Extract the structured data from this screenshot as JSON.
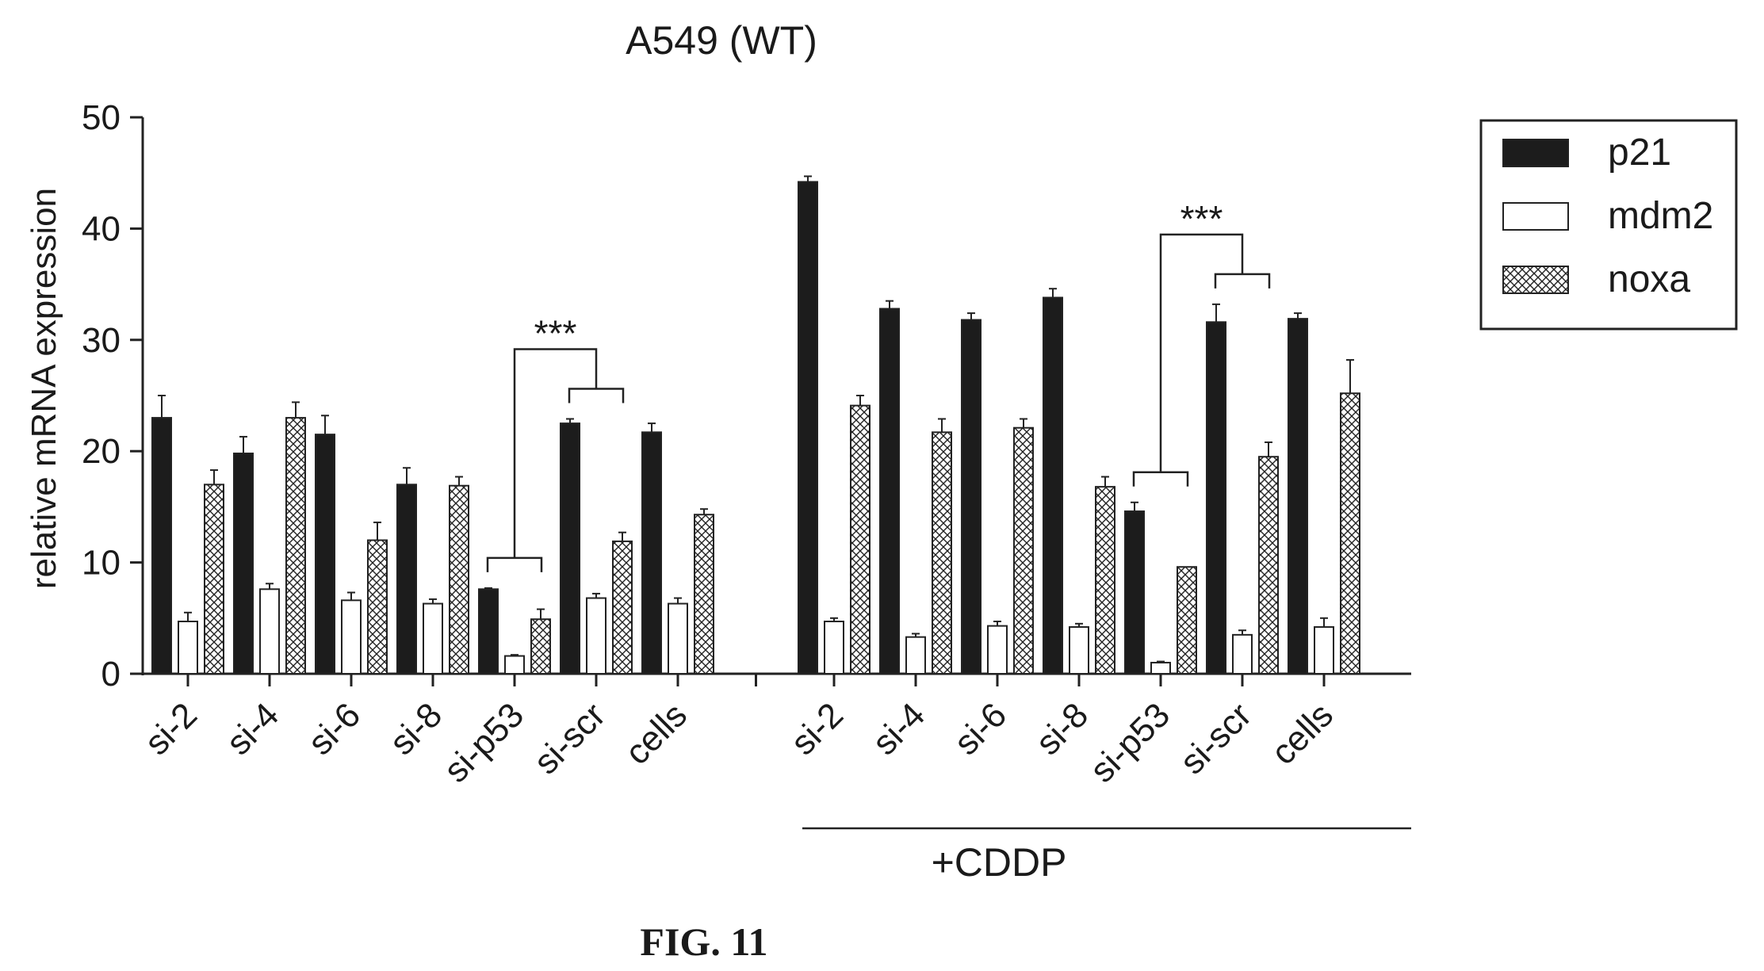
{
  "chart_data": {
    "type": "bar",
    "title": "A549 (WT)",
    "ylabel": "relative mRNA expression",
    "xlabel": "",
    "ylim": [
      0,
      50
    ],
    "yticks": [
      0,
      10,
      20,
      30,
      40,
      50
    ],
    "grid": false,
    "legend_position": "top-right",
    "categories": [
      "si-2",
      "si-4",
      "si-6",
      "si-8",
      "si-p53",
      "si-scr",
      "cells",
      "si-2",
      "si-4",
      "si-6",
      "si-8",
      "si-p53",
      "si-scr",
      "cells"
    ],
    "group_label": "+CDDP",
    "figure_label": "FIG. 11",
    "series": [
      {
        "name": "p21",
        "pattern": "solid",
        "values": [
          23.0,
          19.8,
          21.5,
          17.0,
          7.6,
          22.5,
          21.7,
          44.2,
          32.8,
          31.8,
          33.8,
          14.6,
          31.6,
          31.9
        ],
        "errors": [
          2.0,
          1.5,
          1.7,
          1.5,
          0.1,
          0.4,
          0.8,
          0.5,
          0.7,
          0.6,
          0.8,
          0.8,
          1.6,
          0.5
        ]
      },
      {
        "name": "mdm2",
        "pattern": "open",
        "values": [
          4.7,
          7.6,
          6.6,
          6.3,
          1.6,
          6.8,
          6.3,
          4.7,
          3.3,
          4.3,
          4.2,
          1.0,
          3.5,
          4.2
        ],
        "errors": [
          0.8,
          0.5,
          0.7,
          0.4,
          0.1,
          0.4,
          0.5,
          0.3,
          0.3,
          0.4,
          0.3,
          0.1,
          0.4,
          0.8
        ]
      },
      {
        "name": "noxa",
        "pattern": "crosshatch",
        "values": [
          17.0,
          23.0,
          12.0,
          16.9,
          4.9,
          11.9,
          14.3,
          24.1,
          21.7,
          22.1,
          16.8,
          9.6,
          19.5,
          25.2
        ],
        "errors": [
          1.3,
          1.4,
          1.6,
          0.8,
          0.9,
          0.8,
          0.5,
          0.9,
          1.2,
          0.8,
          0.9,
          0.0,
          1.3,
          3.0
        ]
      }
    ],
    "annotations": [
      {
        "text": "***",
        "from_category_index": 4,
        "to_category_index": 5
      },
      {
        "text": "***",
        "from_category_index": 11,
        "to_category_index": 12
      }
    ]
  }
}
